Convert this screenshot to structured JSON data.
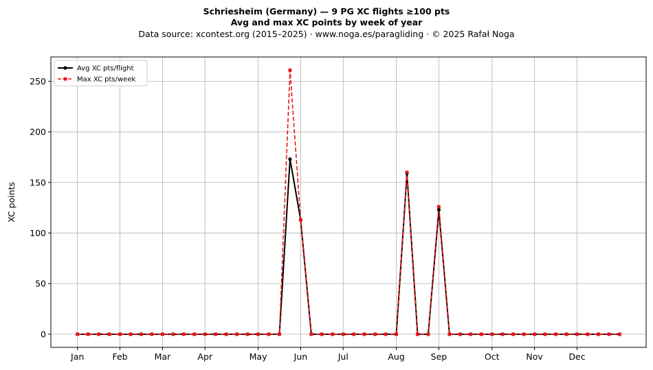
{
  "chart_data": {
    "type": "line",
    "title_line1": "Schriesheim (Germany)  —  9 PG XC flights ≥100 pts",
    "title_line2": "Avg and max XC points by week of year",
    "subtitle": "Data source: xcontest.org (2015–2025)  ·  www.noga.es/paragliding  ·  © 2025 Rafał Noga",
    "ylabel": "XC points",
    "xlabel": "",
    "x": [
      1,
      2,
      3,
      4,
      5,
      6,
      7,
      8,
      9,
      10,
      11,
      12,
      13,
      14,
      15,
      16,
      17,
      18,
      19,
      20,
      21,
      22,
      23,
      24,
      25,
      26,
      27,
      28,
      29,
      30,
      31,
      32,
      33,
      34,
      35,
      36,
      37,
      38,
      39,
      40,
      41,
      42,
      43,
      44,
      45,
      46,
      47,
      48,
      49,
      50,
      51,
      52
    ],
    "xlim": [
      -1.5,
      54.5
    ],
    "ylim": [
      -13,
      274
    ],
    "x_ticks": [
      {
        "label": "Jan",
        "x": 1
      },
      {
        "label": "Feb",
        "x": 5
      },
      {
        "label": "Mar",
        "x": 9
      },
      {
        "label": "Apr",
        "x": 13
      },
      {
        "label": "May",
        "x": 18
      },
      {
        "label": "Jun",
        "x": 22
      },
      {
        "label": "Jul",
        "x": 26
      },
      {
        "label": "Aug",
        "x": 31
      },
      {
        "label": "Sep",
        "x": 35
      },
      {
        "label": "Oct",
        "x": 40
      },
      {
        "label": "Nov",
        "x": 44
      },
      {
        "label": "Dec",
        "x": 48
      }
    ],
    "y_ticks": [
      0,
      50,
      100,
      150,
      200,
      250
    ],
    "grid": true,
    "legend_position": "top-left",
    "series": [
      {
        "name": "Avg XC pts/flight",
        "color": "#000000",
        "style": "solid",
        "marker": "circle",
        "values": [
          0,
          0,
          0,
          0,
          0,
          0,
          0,
          0,
          0,
          0,
          0,
          0,
          0,
          0,
          0,
          0,
          0,
          0,
          0,
          0,
          173,
          113,
          0,
          0,
          0,
          0,
          0,
          0,
          0,
          0,
          0,
          159,
          0,
          0,
          123,
          0,
          0,
          0,
          0,
          0,
          0,
          0,
          0,
          0,
          0,
          0,
          0,
          0,
          0,
          0,
          0,
          0
        ]
      },
      {
        "name": "Max XC pts/week",
        "color": "#e8141a",
        "style": "dashed",
        "marker": "square",
        "values": [
          0,
          0,
          0,
          0,
          0,
          0,
          0,
          0,
          0,
          0,
          0,
          0,
          0,
          0,
          0,
          0,
          0,
          0,
          0,
          0,
          261,
          113,
          0,
          0,
          0,
          0,
          0,
          0,
          0,
          0,
          0,
          160,
          0,
          0,
          126,
          0,
          0,
          0,
          0,
          0,
          0,
          0,
          0,
          0,
          0,
          0,
          0,
          0,
          0,
          0,
          0,
          0
        ]
      }
    ]
  }
}
